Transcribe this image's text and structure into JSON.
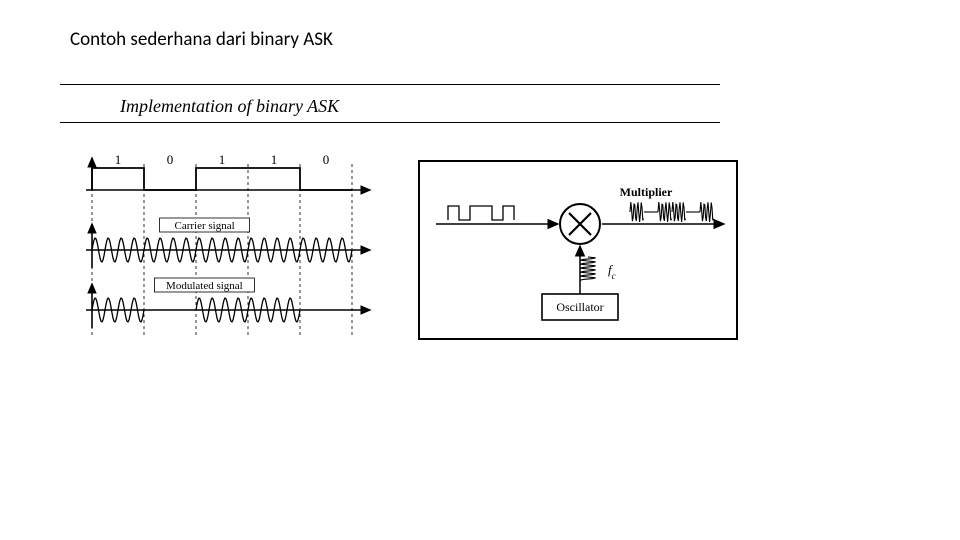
{
  "title": "Contoh sederhana dari binary ASK",
  "subtitle": "Implementation of binary ASK",
  "colors": {
    "fg": "#000000",
    "bg": "#ffffff"
  },
  "waveform": {
    "bits": [
      "1",
      "0",
      "1",
      "1",
      "0"
    ],
    "bit_width": 52,
    "carrier_label": "Carrier signal",
    "modulated_label": "Modulated signal",
    "line_width": 1.6,
    "label_fontsize": 11,
    "bit_fontsize": 13,
    "amplitude": 12,
    "carrier_cycles_per_bit": 4
  },
  "block": {
    "multiplier_label": "Multiplier",
    "oscillator_label": "Oscillator",
    "fc_label": "f",
    "fc_sub": "c",
    "line_width": 1.5,
    "label_fontsize": 12
  }
}
